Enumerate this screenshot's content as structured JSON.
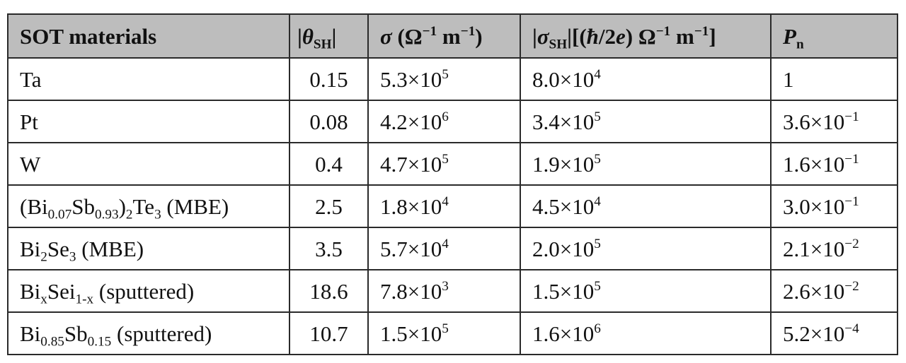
{
  "header": {
    "material": "SOT materials",
    "theta_sym": "θ",
    "theta_sub": "SH",
    "sigma_sym": "σ",
    "sigma_unit_pre": " (Ω",
    "sigma_unit_exp1": "−1",
    "sigma_unit_mid": " m",
    "sigma_unit_exp2": "−1",
    "sigma_unit_post": ")",
    "sigma_sh_sym": "σ",
    "sigma_sh_sub": "SH",
    "sigma_sh_bracket_open": "[(",
    "hbar": "ħ",
    "slash2": "/2",
    "e": "e",
    "sigma_sh_unit_pre": ") Ω",
    "sigma_sh_unit_exp1": "−1",
    "sigma_sh_unit_mid": " m",
    "sigma_sh_unit_exp2": "−1",
    "sigma_sh_unit_post": "]",
    "p_sym": "P",
    "p_sub": "n"
  },
  "rows": [
    {
      "material": [
        {
          "t": "Ta"
        }
      ],
      "theta": "0.15",
      "sigma": {
        "m": "5.3",
        "e": "5"
      },
      "sigma_sh": {
        "m": "8.0",
        "e": "4"
      },
      "pn": {
        "plain": "1"
      }
    },
    {
      "material": [
        {
          "t": "Pt"
        }
      ],
      "theta": "0.08",
      "sigma": {
        "m": "4.2",
        "e": "6"
      },
      "sigma_sh": {
        "m": "3.4",
        "e": "5"
      },
      "pn": {
        "m": "3.6",
        "e": "−1"
      }
    },
    {
      "material": [
        {
          "t": "W"
        }
      ],
      "theta": "0.4",
      "sigma": {
        "m": "4.7",
        "e": "5"
      },
      "sigma_sh": {
        "m": "1.9",
        "e": "5"
      },
      "pn": {
        "m": "1.6",
        "e": "−1"
      }
    },
    {
      "material": [
        {
          "t": "(Bi"
        },
        {
          "sub": "0.07"
        },
        {
          "t": "Sb"
        },
        {
          "sub": "0.93"
        },
        {
          "t": ")"
        },
        {
          "sub": "2"
        },
        {
          "t": "Te"
        },
        {
          "sub": "3"
        },
        {
          "t": " (MBE)"
        }
      ],
      "theta": "2.5",
      "sigma": {
        "m": "1.8",
        "e": "4"
      },
      "sigma_sh": {
        "m": "4.5",
        "e": "4"
      },
      "pn": {
        "m": "3.0",
        "e": "−1"
      }
    },
    {
      "material": [
        {
          "t": "Bi"
        },
        {
          "sub": "2"
        },
        {
          "t": "Se"
        },
        {
          "sub": "3"
        },
        {
          "t": " (MBE)"
        }
      ],
      "theta": "3.5",
      "sigma": {
        "m": "5.7",
        "e": "4"
      },
      "sigma_sh": {
        "m": "2.0",
        "e": "5"
      },
      "pn": {
        "m": "2.1",
        "e": "−2"
      }
    },
    {
      "material": [
        {
          "t": "Bi"
        },
        {
          "sub": "x"
        },
        {
          "t": "Sei"
        },
        {
          "sub": "1-x"
        },
        {
          "t": " (sputtered)"
        }
      ],
      "theta": "18.6",
      "sigma": {
        "m": "7.8",
        "e": "3"
      },
      "sigma_sh": {
        "m": "1.5",
        "e": "5"
      },
      "pn": {
        "m": "2.6",
        "e": "−2"
      }
    },
    {
      "material": [
        {
          "t": "Bi"
        },
        {
          "sub": "0.85"
        },
        {
          "t": "Sb"
        },
        {
          "sub": "0.15"
        },
        {
          "t": " (sputtered)"
        }
      ],
      "theta": "10.7",
      "sigma": {
        "m": "1.5",
        "e": "5"
      },
      "sigma_sh": {
        "m": "1.6",
        "e": "6"
      },
      "pn": {
        "m": "5.2",
        "e": "−4"
      }
    }
  ],
  "times": "×",
  "ten": "10"
}
